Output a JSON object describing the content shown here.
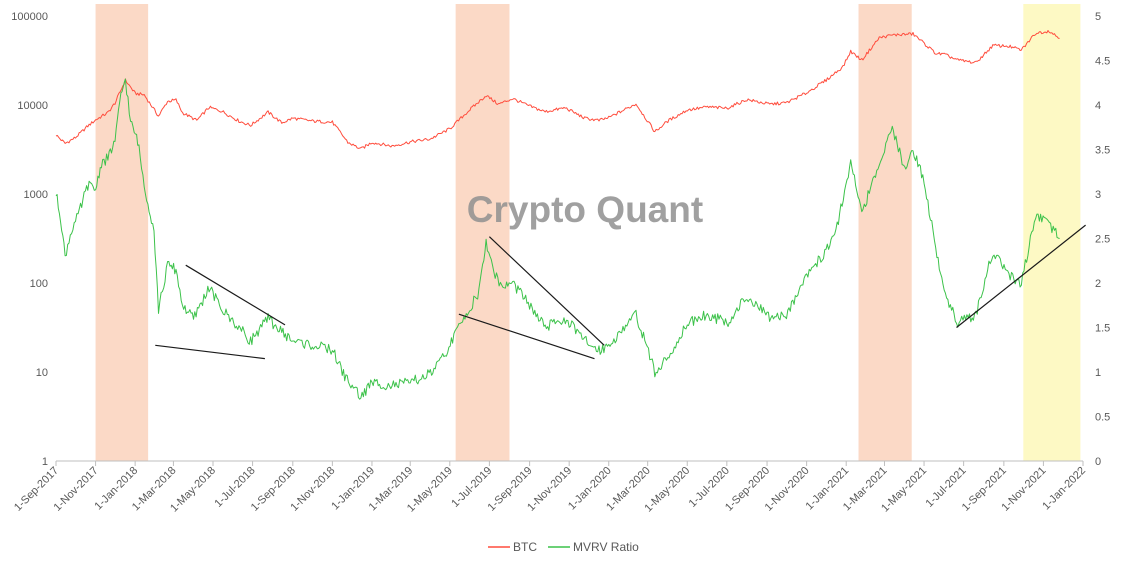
{
  "chart_data": {
    "type": "line",
    "watermark": "Crypto Quant",
    "x_ticks": [
      "1-Sep-2017",
      "1-Nov-2017",
      "1-Jan-2018",
      "1-Mar-2018",
      "1-May-2018",
      "1-Jul-2018",
      "1-Sep-2018",
      "1-Nov-2018",
      "1-Jan-2019",
      "1-Mar-2019",
      "1-May-2019",
      "1-Jul-2019",
      "1-Sep-2019",
      "1-Nov-2019",
      "1-Jan-2020",
      "1-Mar-2020",
      "1-May-2020",
      "1-Jul-2020",
      "1-Sep-2020",
      "1-Nov-2020",
      "1-Jan-2021",
      "1-Mar-2021",
      "1-May-2021",
      "1-Jul-2021",
      "1-Sep-2021",
      "1-Nov-2021",
      "1-Jan-2022"
    ],
    "y_left": {
      "scale": "log",
      "ticks": [
        "1",
        "10",
        "100",
        "1000",
        "10000",
        "100000"
      ],
      "range": [
        1,
        100000
      ]
    },
    "y_right": {
      "scale": "linear",
      "ticks": [
        "0",
        "0.5",
        "1",
        "1.5",
        "2",
        "2.5",
        "3",
        "3.5",
        "4",
        "4.5",
        "5"
      ],
      "range": [
        0,
        5
      ]
    },
    "series": [
      {
        "name": "BTC",
        "axis": "left",
        "color": "#ff4d3d",
        "points": [
          [
            "2017-09-01",
            4600
          ],
          [
            "2017-09-15",
            3700
          ],
          [
            "2017-10-01",
            4300
          ],
          [
            "2017-10-20",
            5800
          ],
          [
            "2017-11-01",
            6800
          ],
          [
            "2017-11-20",
            8200
          ],
          [
            "2017-12-01",
            10500
          ],
          [
            "2017-12-17",
            19000
          ],
          [
            "2018-01-01",
            13500
          ],
          [
            "2018-01-15",
            13000
          ],
          [
            "2018-02-06",
            7500
          ],
          [
            "2018-02-20",
            11000
          ],
          [
            "2018-03-05",
            11400
          ],
          [
            "2018-03-15",
            8200
          ],
          [
            "2018-04-06",
            6700
          ],
          [
            "2018-04-25",
            9400
          ],
          [
            "2018-05-15",
            8500
          ],
          [
            "2018-06-10",
            6600
          ],
          [
            "2018-06-28",
            5900
          ],
          [
            "2018-07-25",
            8300
          ],
          [
            "2018-08-15",
            6300
          ],
          [
            "2018-09-01",
            7100
          ],
          [
            "2018-10-01",
            6600
          ],
          [
            "2018-11-01",
            6400
          ],
          [
            "2018-11-25",
            3800
          ],
          [
            "2018-12-15",
            3200
          ],
          [
            "2019-01-01",
            3800
          ],
          [
            "2019-02-01",
            3450
          ],
          [
            "2019-03-01",
            3850
          ],
          [
            "2019-04-01",
            4150
          ],
          [
            "2019-05-01",
            5400
          ],
          [
            "2019-05-30",
            8600
          ],
          [
            "2019-06-26",
            12800
          ],
          [
            "2019-07-15",
            10200
          ],
          [
            "2019-08-06",
            11800
          ],
          [
            "2019-09-01",
            9700
          ],
          [
            "2019-09-25",
            8400
          ],
          [
            "2019-10-26",
            9300
          ],
          [
            "2019-11-25",
            7100
          ],
          [
            "2019-12-17",
            6700
          ],
          [
            "2020-01-01",
            7200
          ],
          [
            "2020-02-12",
            10300
          ],
          [
            "2020-03-12",
            5000
          ],
          [
            "2020-04-01",
            6600
          ],
          [
            "2020-05-01",
            8800
          ],
          [
            "2020-06-01",
            9500
          ],
          [
            "2020-07-01",
            9200
          ],
          [
            "2020-08-01",
            11500
          ],
          [
            "2020-09-05",
            10200
          ],
          [
            "2020-10-01",
            10600
          ],
          [
            "2020-11-01",
            13700
          ],
          [
            "2020-12-01",
            19000
          ],
          [
            "2020-12-27",
            27000
          ],
          [
            "2021-01-08",
            40000
          ],
          [
            "2021-01-25",
            32000
          ],
          [
            "2021-02-21",
            57000
          ],
          [
            "2021-03-13",
            61000
          ],
          [
            "2021-04-14",
            63000
          ],
          [
            "2021-05-19",
            38000
          ],
          [
            "2021-06-01",
            37000
          ],
          [
            "2021-06-22",
            32000
          ],
          [
            "2021-07-20",
            29800
          ],
          [
            "2021-08-15",
            46500
          ],
          [
            "2021-09-07",
            46000
          ],
          [
            "2021-09-28",
            41500
          ],
          [
            "2021-10-20",
            64000
          ],
          [
            "2021-11-10",
            68000
          ],
          [
            "2021-11-26",
            56000
          ]
        ]
      },
      {
        "name": "MVRV Ratio",
        "axis": "right",
        "color": "#3cc24a",
        "points": [
          [
            "2017-09-01",
            3.0
          ],
          [
            "2017-09-08",
            2.75
          ],
          [
            "2017-09-15",
            2.3
          ],
          [
            "2017-09-25",
            2.6
          ],
          [
            "2017-10-05",
            2.75
          ],
          [
            "2017-10-20",
            3.1
          ],
          [
            "2017-11-01",
            3.05
          ],
          [
            "2017-11-10",
            3.35
          ],
          [
            "2017-11-20",
            3.4
          ],
          [
            "2017-12-01",
            3.6
          ],
          [
            "2017-12-10",
            4.1
          ],
          [
            "2017-12-17",
            4.3
          ],
          [
            "2017-12-25",
            3.8
          ],
          [
            "2018-01-05",
            3.6
          ],
          [
            "2018-01-15",
            3.1
          ],
          [
            "2018-01-30",
            2.6
          ],
          [
            "2018-02-06",
            1.7
          ],
          [
            "2018-02-20",
            2.2
          ],
          [
            "2018-03-05",
            2.15
          ],
          [
            "2018-03-15",
            1.75
          ],
          [
            "2018-04-01",
            1.6
          ],
          [
            "2018-04-25",
            1.95
          ],
          [
            "2018-05-15",
            1.7
          ],
          [
            "2018-06-10",
            1.5
          ],
          [
            "2018-06-28",
            1.35
          ],
          [
            "2018-07-25",
            1.6
          ],
          [
            "2018-08-15",
            1.45
          ],
          [
            "2018-09-01",
            1.35
          ],
          [
            "2018-10-01",
            1.3
          ],
          [
            "2018-11-01",
            1.25
          ],
          [
            "2018-11-20",
            0.95
          ],
          [
            "2018-12-15",
            0.72
          ],
          [
            "2019-01-01",
            0.88
          ],
          [
            "2019-02-01",
            0.85
          ],
          [
            "2019-03-01",
            0.88
          ],
          [
            "2019-04-01",
            0.98
          ],
          [
            "2019-04-20",
            1.15
          ],
          [
            "2019-05-15",
            1.5
          ],
          [
            "2019-05-30",
            1.7
          ],
          [
            "2019-06-15",
            1.9
          ],
          [
            "2019-06-26",
            2.45
          ],
          [
            "2019-07-10",
            2.1
          ],
          [
            "2019-07-20",
            1.95
          ],
          [
            "2019-08-06",
            2.0
          ],
          [
            "2019-09-01",
            1.75
          ],
          [
            "2019-09-25",
            1.5
          ],
          [
            "2019-10-26",
            1.6
          ],
          [
            "2019-11-25",
            1.35
          ],
          [
            "2019-12-17",
            1.25
          ],
          [
            "2020-01-01",
            1.3
          ],
          [
            "2020-02-12",
            1.65
          ],
          [
            "2020-03-12",
            1.0
          ],
          [
            "2020-04-01",
            1.15
          ],
          [
            "2020-05-01",
            1.55
          ],
          [
            "2020-06-01",
            1.65
          ],
          [
            "2020-07-01",
            1.55
          ],
          [
            "2020-08-01",
            1.85
          ],
          [
            "2020-09-05",
            1.6
          ],
          [
            "2020-10-01",
            1.65
          ],
          [
            "2020-11-01",
            2.1
          ],
          [
            "2020-12-01",
            2.35
          ],
          [
            "2020-12-20",
            2.7
          ],
          [
            "2021-01-08",
            3.35
          ],
          [
            "2021-01-25",
            2.8
          ],
          [
            "2021-02-21",
            3.3
          ],
          [
            "2021-03-13",
            3.75
          ],
          [
            "2021-04-01",
            3.3
          ],
          [
            "2021-04-14",
            3.5
          ],
          [
            "2021-05-01",
            3.15
          ],
          [
            "2021-05-19",
            2.4
          ],
          [
            "2021-06-01",
            1.9
          ],
          [
            "2021-06-22",
            1.55
          ],
          [
            "2021-07-20",
            1.65
          ],
          [
            "2021-08-15",
            2.35
          ],
          [
            "2021-09-07",
            2.1
          ],
          [
            "2021-09-28",
            2.0
          ],
          [
            "2021-10-20",
            2.75
          ],
          [
            "2021-11-10",
            2.65
          ],
          [
            "2021-11-26",
            2.5
          ]
        ]
      }
    ],
    "highlight_bands": [
      {
        "start": "2017-11-01",
        "end": "2018-01-21",
        "color": "#fbd9c6"
      },
      {
        "start": "2019-05-10",
        "end": "2019-08-01",
        "color": "#fbd9c6"
      },
      {
        "start": "2021-01-20",
        "end": "2021-04-12",
        "color": "#fbd9c6"
      },
      {
        "start": "2021-10-01",
        "end": "2021-12-28",
        "color": "#fdf9c4"
      }
    ],
    "trend_lines": [
      {
        "axis": "right",
        "from": [
          "2018-02-01",
          1.3
        ],
        "to": [
          "2018-07-20",
          1.15
        ]
      },
      {
        "axis": "right",
        "from": [
          "2018-03-20",
          2.2
        ],
        "to": [
          "2018-08-20",
          1.53
        ]
      },
      {
        "axis": "right",
        "from": [
          "2019-05-15",
          1.65
        ],
        "to": [
          "2019-12-10",
          1.15
        ]
      },
      {
        "axis": "right",
        "from": [
          "2019-07-01",
          2.52
        ],
        "to": [
          "2019-12-25",
          1.3
        ]
      },
      {
        "axis": "right",
        "from": [
          "2021-06-20",
          1.5
        ],
        "to": [
          "2022-01-05",
          2.65
        ]
      }
    ],
    "legend": {
      "position": "bottom",
      "entries": [
        "BTC",
        "MVRV Ratio"
      ]
    },
    "grid": false
  }
}
